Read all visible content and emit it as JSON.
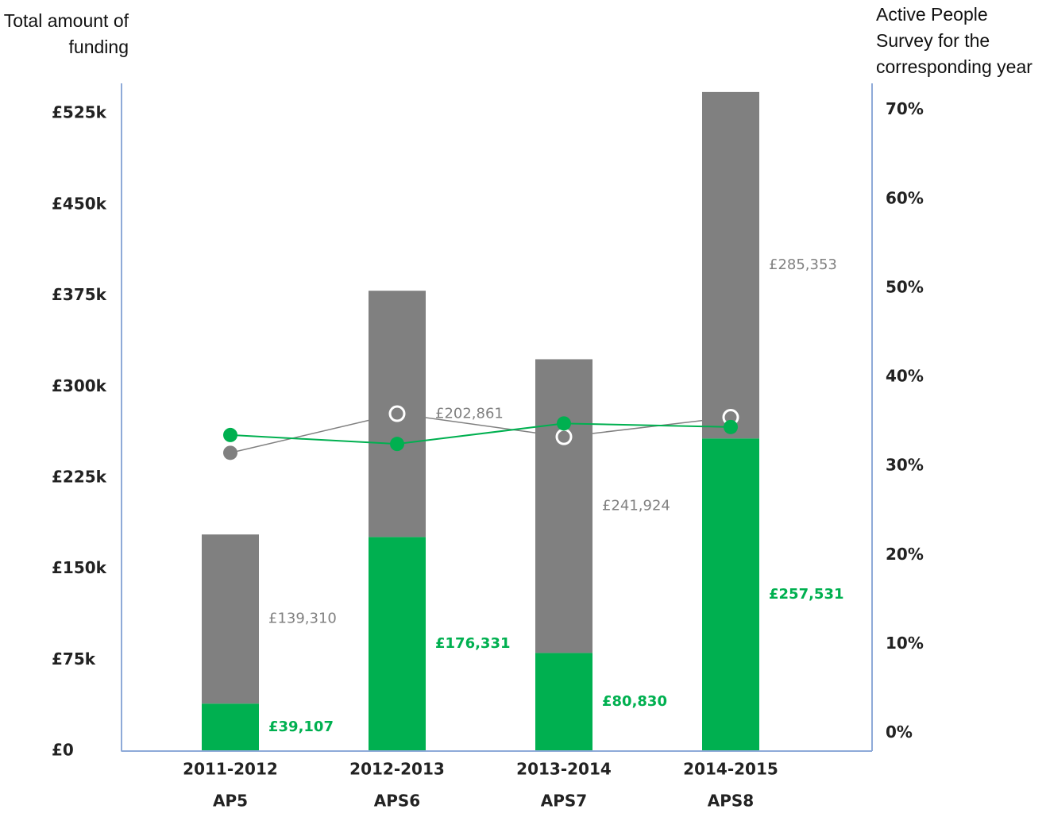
{
  "chart_data": {
    "type": "bar",
    "stacked": true,
    "ylabel": "Total amount of funding",
    "y2label": "Active People Survey for the corresponding year",
    "categories": [
      "2011-2012",
      "2012-2013",
      "2013-2014",
      "2014-2015"
    ],
    "category_sublabels": [
      "AP5",
      "APS6",
      "APS7",
      "APS8"
    ],
    "series": [
      {
        "color": "#00b050",
        "values": [
          39107,
          176331,
          80830,
          257531
        ],
        "value_labels": [
          "£39,107",
          "£176,331",
          "£80,830",
          "£257,531"
        ]
      },
      {
        "color": "#808080",
        "values": [
          139310,
          202861,
          241924,
          285353
        ],
        "value_labels": [
          "£139,310",
          "£202,861",
          "£241,924",
          "£285,353"
        ]
      }
    ],
    "lines": [
      {
        "color": "#808080",
        "axis": "y2",
        "values": [
          31.5,
          35.9,
          33.3,
          35.5
        ]
      },
      {
        "color": "#00b050",
        "axis": "y2",
        "values": [
          33.5,
          32.5,
          34.8,
          34.4
        ]
      }
    ],
    "ylim": [
      0,
      550000
    ],
    "yticks": [
      {
        "value": 0,
        "label": "£0"
      },
      {
        "value": 75000,
        "label": "£75k"
      },
      {
        "value": 150000,
        "label": "£150k"
      },
      {
        "value": 225000,
        "label": "£225k"
      },
      {
        "value": 300000,
        "label": "£300k"
      },
      {
        "value": 375000,
        "label": "£375k"
      },
      {
        "value": 450000,
        "label": "£450k"
      },
      {
        "value": 525000,
        "label": "£525k"
      }
    ],
    "y2lim": [
      -2,
      73
    ],
    "y2ticks": [
      {
        "value": 0,
        "label": "0%"
      },
      {
        "value": 10,
        "label": "10%"
      },
      {
        "value": 20,
        "label": "20%"
      },
      {
        "value": 30,
        "label": "30%"
      },
      {
        "value": 40,
        "label": "40%"
      },
      {
        "value": 50,
        "label": "50%"
      },
      {
        "value": 60,
        "label": "60%"
      },
      {
        "value": 70,
        "label": "70%"
      }
    ]
  }
}
